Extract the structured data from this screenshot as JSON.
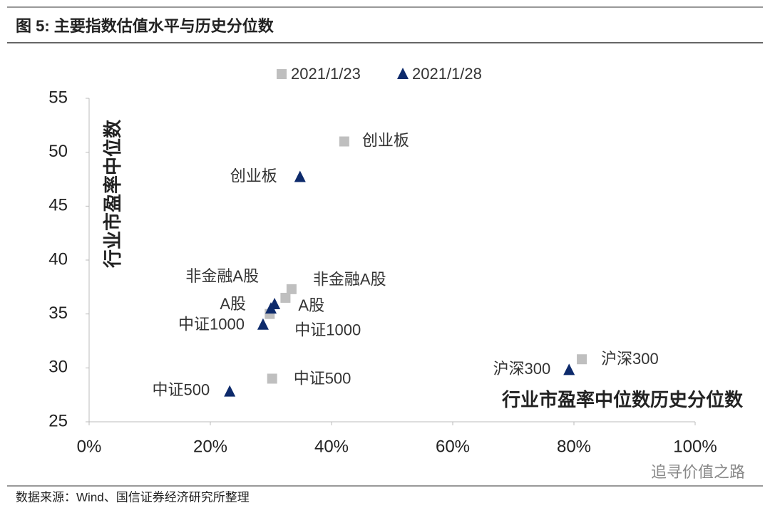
{
  "chart_data": {
    "type": "scatter",
    "title": "图 5: 主要指数估值水平与历史分位数",
    "x_label": "行业市盈率中位数历史分位数",
    "y_label": "行业市盈率中位数",
    "source": "数据来源：Wind、国信证券经济研究所整理",
    "watermark": "追寻价值之路",
    "point_labels": [
      "创业板",
      "非金融A股",
      "A股",
      "中证1000",
      "中证500",
      "沪深300"
    ],
    "series": [
      {
        "name": "2021/1/23",
        "color": "#bfbfbf",
        "marker": "square",
        "x": [
          42.1,
          33.4,
          32.4,
          29.8,
          30.2,
          81.3
        ],
        "y": [
          51.0,
          37.3,
          36.5,
          35.0,
          29.0,
          30.8
        ]
      },
      {
        "name": "2021/1/28",
        "color": "#0d2a6b",
        "marker": "triangle",
        "x": [
          34.8,
          30.6,
          30.0,
          28.7,
          23.2,
          79.2
        ],
        "y": [
          47.7,
          35.9,
          35.5,
          34.0,
          27.8,
          29.8
        ]
      }
    ],
    "xlim": [
      0,
      100
    ],
    "xticks": [
      {
        "value": 0,
        "label": "0%"
      },
      {
        "value": 20,
        "label": "20%"
      },
      {
        "value": 40,
        "label": "40%"
      },
      {
        "value": 60,
        "label": "60%"
      },
      {
        "value": 80,
        "label": "80%"
      },
      {
        "value": 100,
        "label": "100%"
      }
    ],
    "ylim": [
      25,
      55
    ],
    "yticks": [
      25,
      30,
      35,
      40,
      45,
      50,
      55
    ],
    "grid": false,
    "legend": "top"
  }
}
